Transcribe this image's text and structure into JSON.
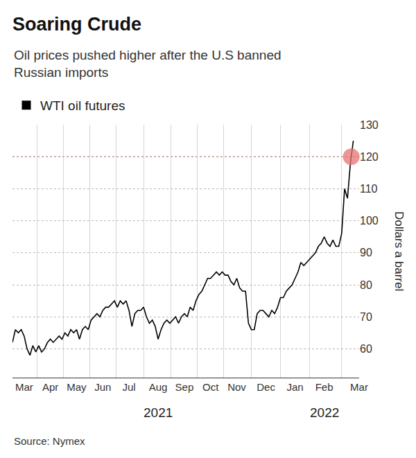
{
  "chart_data": {
    "type": "line",
    "title": "Soaring Crude",
    "subtitle": "Oil prices pushed higher after the U.S banned\nRussian imports",
    "y_label": "Dollars a barrel",
    "source": "Source: Nymex",
    "categories": [
      null,
      null,
      null,
      null,
      "Mar",
      null,
      null,
      null,
      null,
      null,
      null,
      null,
      null,
      "Apr",
      null,
      null,
      null,
      null,
      null,
      null,
      null,
      null,
      "May",
      null,
      null,
      null,
      null,
      null,
      null,
      null,
      null,
      "Jun",
      null,
      null,
      null,
      null,
      null,
      null,
      null,
      null,
      "Jul",
      null,
      null,
      null,
      null,
      null,
      null,
      null,
      null,
      null,
      "Aug",
      null,
      null,
      null,
      null,
      null,
      null,
      null,
      null,
      "Sep",
      null,
      null,
      null,
      null,
      null,
      null,
      null,
      null,
      "Oct",
      null,
      null,
      null,
      null,
      null,
      null,
      null,
      null,
      "Nov",
      null,
      null,
      null,
      null,
      null,
      null,
      null,
      null,
      null,
      "Dec",
      null,
      null,
      null,
      null,
      null,
      null,
      null,
      null,
      null,
      "Jan",
      null,
      null,
      null,
      null,
      null,
      null,
      null,
      null,
      null,
      "Feb",
      null,
      null,
      null,
      null,
      null,
      null,
      null,
      null,
      null,
      null,
      null,
      "Mar"
    ],
    "series": [
      {
        "name": "WTI oil futures",
        "color": "#000000",
        "values": [
          62,
          66,
          65,
          66,
          64,
          60,
          58,
          61,
          59,
          61,
          59,
          60,
          62,
          63,
          62,
          63,
          64,
          63,
          65,
          64,
          66,
          65,
          66,
          63,
          66,
          67,
          66,
          69,
          70,
          71,
          70,
          72,
          73,
          73,
          74,
          75,
          73,
          75,
          74,
          75,
          72,
          67,
          71,
          72,
          72,
          73,
          70,
          68,
          69,
          67,
          63,
          66,
          68,
          69,
          68,
          69,
          70,
          68,
          70,
          71,
          70,
          73,
          72,
          75,
          77,
          78,
          80,
          82,
          82,
          83,
          84,
          83,
          84,
          83,
          83,
          81,
          80,
          82,
          79,
          78,
          78,
          68,
          66,
          66,
          71,
          72,
          72,
          71,
          70,
          72,
          71,
          73,
          76,
          76,
          78,
          79,
          80,
          82,
          84,
          87,
          86,
          87,
          88,
          89,
          90,
          92,
          93,
          95,
          93,
          92,
          94,
          92,
          92,
          96,
          110,
          107,
          118,
          125,
          null,
          null
        ]
      }
    ],
    "ylim": [
      51,
      130
    ],
    "yticks": [
      60,
      70,
      80,
      90,
      100,
      110,
      120,
      130
    ],
    "grid": true,
    "legend": "top-left",
    "annotations": [
      {
        "text": "2021",
        "x": "Aug"
      },
      {
        "text": "2022",
        "x": "Feb"
      }
    ],
    "hlines": [
      {
        "y": 120,
        "color": "#d9534f",
        "line_style": "dot"
      }
    ],
    "highlight": {
      "y": 120,
      "color": "#e57373",
      "marker": "circle"
    }
  }
}
